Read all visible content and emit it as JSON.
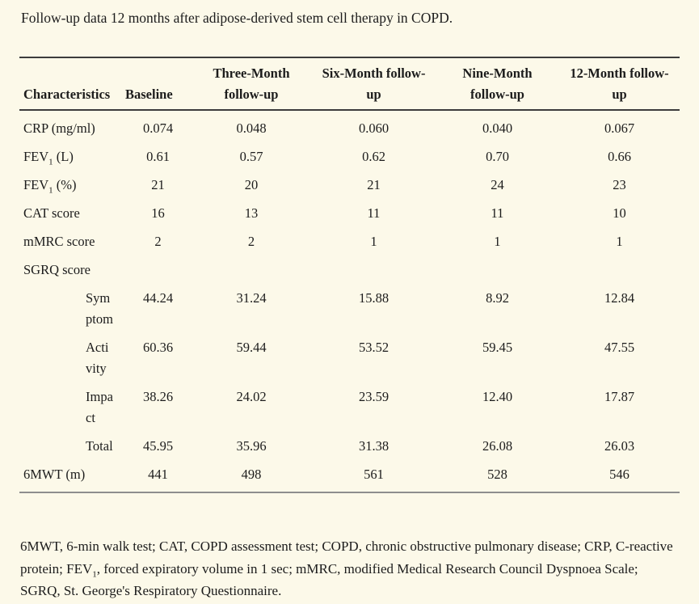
{
  "theme": {
    "background": "#FCF9E9",
    "text_color": "#1C1C1C",
    "rule_dark": "#3C3C3C",
    "rule_light": "#8E8E8E"
  },
  "title": "Follow-up data 12 months after adipose-derived stem cell therapy in COPD.",
  "table": {
    "columns": [
      {
        "lines": [
          "Characteristics"
        ]
      },
      {
        "lines": [
          "Baseline"
        ]
      },
      {
        "lines": [
          "Three-Month",
          "follow-up"
        ]
      },
      {
        "lines": [
          "Six-Month follow-",
          "up"
        ]
      },
      {
        "lines": [
          "Nine-Month",
          "follow-up"
        ]
      },
      {
        "lines": [
          "12-Month follow-",
          "up"
        ]
      }
    ],
    "rows": [
      {
        "label": {
          "text": "CRP (mg/ml)"
        },
        "values": [
          "0.074",
          "0.048",
          "0.060",
          "0.040",
          "0.067"
        ]
      },
      {
        "label": {
          "pre": "FEV",
          "sub": "1",
          "post": " (L)"
        },
        "values": [
          "0.61",
          "0.57",
          "0.62",
          "0.70",
          "0.66"
        ]
      },
      {
        "label": {
          "pre": "FEV",
          "sub": "1",
          "post": " (%)"
        },
        "values": [
          "21",
          "20",
          "21",
          "24",
          "23"
        ]
      },
      {
        "label": {
          "text": "CAT score"
        },
        "values": [
          "16",
          "13",
          "11",
          "11",
          "10"
        ]
      },
      {
        "label": {
          "text": "mMRC score"
        },
        "values": [
          "2",
          "2",
          "1",
          "1",
          "1"
        ]
      },
      {
        "label": {
          "text": "SGRQ score"
        },
        "values": [
          "",
          "",
          "",
          "",
          ""
        ]
      },
      {
        "label": {
          "lines": [
            "Sym",
            "ptom"
          ],
          "indent": true,
          "full": "Symptom"
        },
        "values": [
          "44.24",
          "31.24",
          "15.88",
          "8.92",
          "12.84"
        ]
      },
      {
        "label": {
          "lines": [
            "Acti",
            "vity"
          ],
          "indent": true,
          "full": "Activity"
        },
        "values": [
          "60.36",
          "59.44",
          "53.52",
          "59.45",
          "47.55"
        ]
      },
      {
        "label": {
          "lines": [
            "Impa",
            "ct"
          ],
          "indent": true,
          "full": "Impact"
        },
        "values": [
          "38.26",
          "24.02",
          "23.59",
          "12.40",
          "17.87"
        ]
      },
      {
        "label": {
          "lines": [
            "Total"
          ],
          "indent": true,
          "full": "Total"
        },
        "values": [
          "45.95",
          "35.96",
          "31.38",
          "26.08",
          "26.03"
        ]
      },
      {
        "label": {
          "text": "6MWT (m)"
        },
        "values": [
          "441",
          "498",
          "561",
          "528",
          "546"
        ]
      }
    ]
  },
  "footnote": {
    "part1": "6MWT, 6-min walk test; CAT, COPD assessment test; COPD, chronic obstructive pulmonary disease; CRP, C-reactive protein; FEV",
    "sub": "1",
    "part2": ", forced expiratory volume in 1 sec; mMRC, modified Medical Research Council Dyspnoea Scale; SGRQ, St. George's Respiratory Questionnaire."
  }
}
